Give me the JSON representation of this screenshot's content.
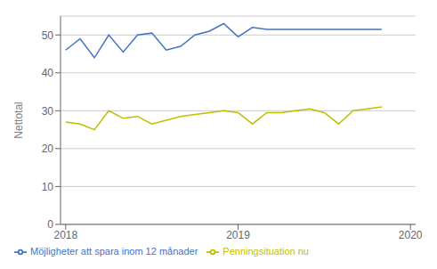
{
  "chart_data": {
    "type": "line",
    "title": "",
    "ylabel": "Nettotal",
    "x": [
      2018,
      2018.0833333333333,
      2018.1666666666667,
      2018.25,
      2018.3333333333333,
      2018.4166666666667,
      2018.5,
      2018.5833333333333,
      2018.6666666666667,
      2018.75,
      2018.8333333333333,
      2018.9166666666667,
      2019,
      2019.0833333333333,
      2019.1666666666667,
      2019.25,
      2019.3333333333333,
      2019.4166666666667,
      2019.5,
      2019.5833333333333,
      2019.6666666666667,
      2019.75,
      2019.8333333333333
    ],
    "series": [
      {
        "name": "Möjligheter att spara inom 12 månader",
        "color": "#4472C4",
        "values": [
          46,
          49,
          44,
          50,
          45.5,
          50,
          50.5,
          46,
          47,
          50,
          51,
          53,
          49.5,
          52,
          51.5,
          51.5,
          51.5,
          51.5,
          51.5,
          51.5,
          51.5,
          51.5,
          51.5
        ]
      },
      {
        "name": "Penningsituation nu",
        "color": "#BFBF00",
        "values": [
          27,
          26.5,
          25,
          30,
          28,
          28.5,
          26.5,
          27.5,
          28.5,
          29,
          29.5,
          30,
          29.5,
          26.5,
          29.5,
          29.5,
          30,
          30.5,
          29.5,
          26.5,
          30,
          30.5,
          31
        ]
      }
    ],
    "xlim": [
      2017.97,
      2020.03
    ],
    "xticks": [
      2018,
      2019,
      2020
    ],
    "ylim": [
      0,
      55
    ],
    "yticks": [
      0,
      10,
      20,
      30,
      40,
      50
    ],
    "grid": true,
    "legend": "lower left"
  }
}
